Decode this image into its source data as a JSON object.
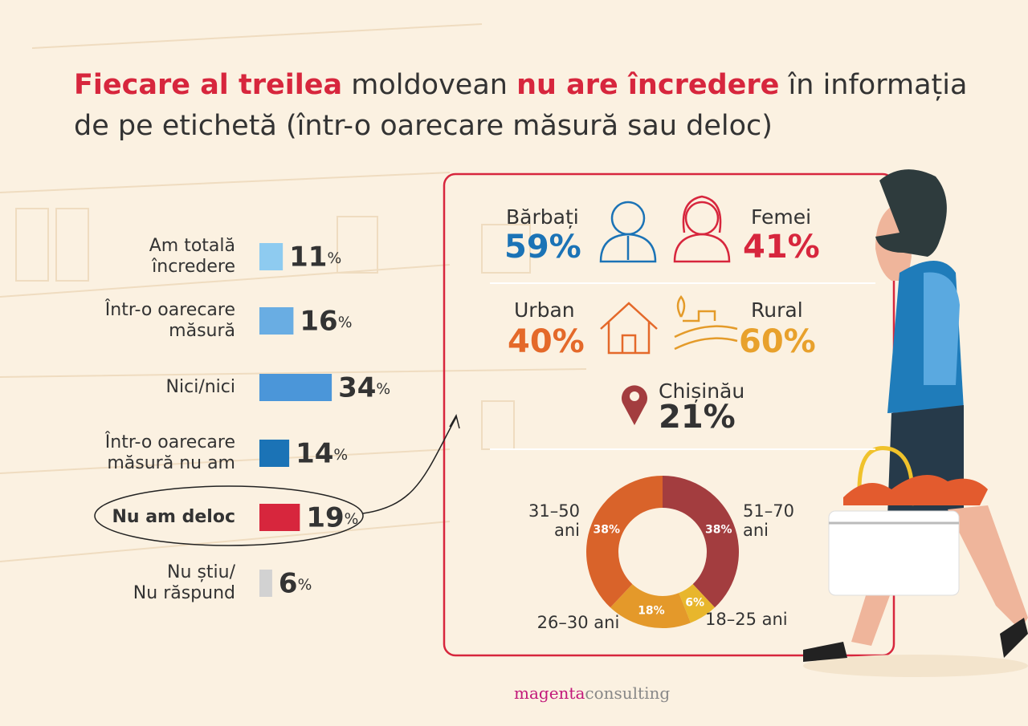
{
  "title": {
    "lines": [
      [
        "Fiecare al treilea",
        "moldovean",
        "nu are încredere",
        "în informația"
      ],
      [
        "de pe etichetă (într-o oarecare măsură sau deloc)"
      ]
    ]
  },
  "chart_data": [
    {
      "type": "bar",
      "categories": [
        "Am totală\nîncredere",
        "Într-o oarecare\nmăsură",
        "Nici/nici",
        "Într-o oarecare\nmăsură nu am",
        "Nu am deloc",
        "Nu știu/\nNu răspund"
      ],
      "values": [
        11,
        16,
        34,
        14,
        19,
        6
      ],
      "value_labels": [
        "11%",
        "16%",
        "34%",
        "14%",
        "19%",
        "6%"
      ],
      "colors": [
        "#8ecbf0",
        "#69ade3",
        "#4b96d9",
        "#1b73b6",
        "#d7263d",
        "#d2d2d2"
      ]
    },
    {
      "type": "donut",
      "categories": [
        "51–70\nani",
        "18–25 ani",
        "26–30 ani",
        "31–50\nani"
      ],
      "values": [
        38,
        6,
        18,
        38
      ],
      "value_labels": [
        "38%",
        "6%",
        "18%",
        "38%"
      ],
      "colors": [
        "#a33d3f",
        "#e8b62c",
        "#e4992a",
        "#d9632a"
      ]
    }
  ],
  "profile": {
    "men": {
      "label": "Bărbați",
      "value": "59%"
    },
    "women": {
      "label": "Femei",
      "value": "41%"
    },
    "urban": {
      "label": "Urban",
      "value": "40%"
    },
    "rural": {
      "label": "Rural",
      "value": "60%"
    },
    "capital": {
      "label": "Chișinău",
      "value": "21%"
    }
  },
  "footer": {
    "brand": "magenta",
    "suffix": "consulting"
  }
}
